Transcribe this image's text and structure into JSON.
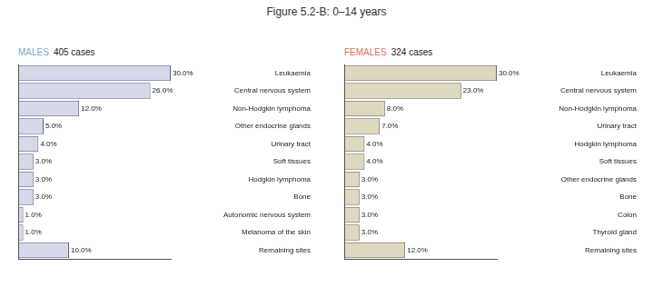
{
  "title": "Figure 5.2-B: 0–14 years",
  "chart_data": [
    {
      "type": "bar",
      "orientation": "horizontal",
      "title": "MALES",
      "subtitle": "405 cases",
      "categories": [
        "Leukaemia",
        "Central nervous system",
        "Non-Hodgkin lymphoma",
        "Other endocrine glands",
        "Urinary tract",
        "Soft tissues",
        "Hodgkin lymphoma",
        "Bone",
        "Autonomic nervous system",
        "Melanoma of the skin",
        "Remaining sites"
      ],
      "values": [
        30,
        26,
        12,
        5,
        4,
        3,
        3,
        3,
        1,
        1,
        10
      ],
      "value_labels": [
        "30.0%",
        "26.0%",
        "12.0%",
        "5.0%",
        "4.0%",
        "3.0%",
        "3.0%",
        "3.0%",
        "1.0%",
        "1.0%",
        "10.0%"
      ],
      "color": "#d6d9ea",
      "xlim": [
        0,
        30
      ],
      "xticks": [
        0,
        30
      ],
      "tick_labels": "y",
      "data_labels": true
    },
    {
      "type": "bar",
      "orientation": "horizontal",
      "title": "FEMALES",
      "subtitle": "324 cases",
      "categories": [
        "Leukaemia",
        "Central nervous system",
        "Non-Hodgkin lymphoma",
        "Urinary tract",
        "Hodgkin lymphoma",
        "Soft tissues",
        "Other endocrine glands",
        "Bone",
        "Colon",
        "Thyroid gland",
        "Remaining sites"
      ],
      "values": [
        30,
        23,
        8,
        7,
        4,
        4,
        3,
        3,
        3,
        3,
        12
      ],
      "value_labels": [
        "30.0%",
        "23.0%",
        "8.0%",
        "7.0%",
        "4.0%",
        "4.0%",
        "3.0%",
        "3.0%",
        "3.0%",
        "3.0%",
        "12.0%"
      ],
      "color": "#dcd9c0",
      "xlim": [
        0,
        30
      ],
      "xticks": [
        0,
        30
      ],
      "tick_labels": "y",
      "data_labels": true
    }
  ]
}
